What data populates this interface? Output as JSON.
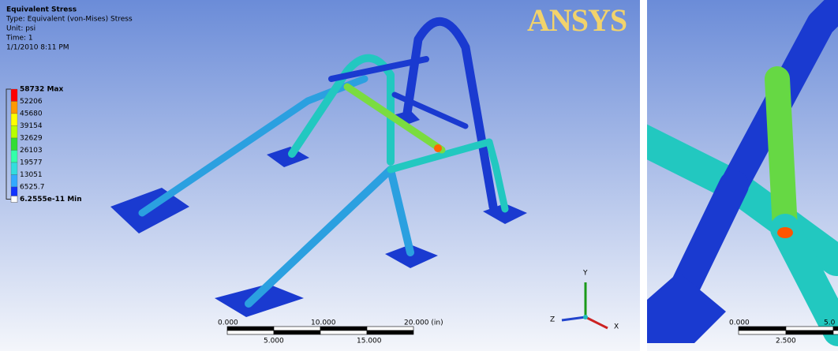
{
  "left_view": {
    "info": {
      "title": "Equivalent Stress",
      "type": "Type: Equivalent (von-Mises) Stress",
      "unit": "Unit: psi",
      "time": "Time: 1",
      "date": "1/1/2010 8:11 PM"
    },
    "legend_labels": [
      "58732 Max",
      "52206",
      "45680",
      "39154",
      "32629",
      "26103",
      "19577",
      "13051",
      "6525.7",
      "6.2555e-11 Min"
    ],
    "legend_colors": [
      "#ff0000",
      "#ff9900",
      "#ffff00",
      "#b8ff00",
      "#33dd33",
      "#33ffaa",
      "#33dddd",
      "#33aaff",
      "#1133ff"
    ],
    "logo": "ANSYS",
    "scale_bar": {
      "top_labels": [
        "0.000",
        "10.000",
        "20.000 (in)"
      ],
      "bottom_labels": [
        "5.000",
        "15.000"
      ]
    },
    "triad": {
      "y": "Y",
      "z": "Z",
      "x": "X"
    }
  },
  "right_view": {
    "scale_bar": {
      "top_labels": [
        "0.000",
        "5.0"
      ],
      "bottom_labels": [
        "2.500"
      ]
    }
  }
}
